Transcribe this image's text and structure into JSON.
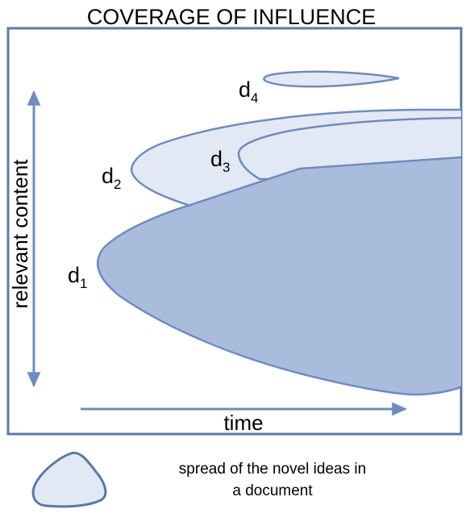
{
  "title": "COVERAGE OF INFLUENCE",
  "axes": {
    "y_label": "relevant content",
    "x_label": "time"
  },
  "documents": [
    {
      "letter": "d",
      "index": "1"
    },
    {
      "letter": "d",
      "index": "2"
    },
    {
      "letter": "d",
      "index": "3"
    },
    {
      "letter": "d",
      "index": "4"
    }
  ],
  "legend": {
    "line1": "spread of the novel ideas in",
    "line2": "a document"
  },
  "colors": {
    "frame": "#5a78ab",
    "stroke": "#6d8cc4",
    "light_fill": "#e3e9f4",
    "dark_fill": "#a9bcdc",
    "arrow": "#6d8cc4"
  }
}
